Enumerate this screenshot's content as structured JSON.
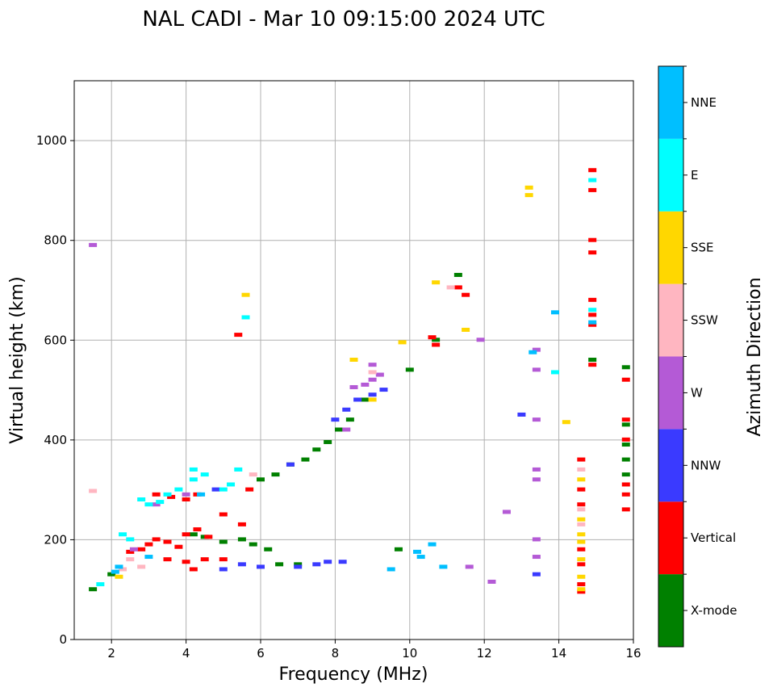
{
  "chart_data": {
    "type": "scatter",
    "title": "NAL CADI - Mar 10 09:15:00 2024 UTC",
    "xlabel": "Frequency (MHz)",
    "ylabel": "Virtual height (km)",
    "xlim": [
      1,
      16
    ],
    "ylim": [
      0,
      1120
    ],
    "xticks": [
      2,
      4,
      6,
      8,
      10,
      12,
      14,
      16
    ],
    "yticks": [
      0,
      200,
      400,
      600,
      800,
      1000
    ],
    "grid": true,
    "colorbar": {
      "label": "Azimuth Direction",
      "categories": [
        {
          "name": "X-mode",
          "color": "#008000"
        },
        {
          "name": "Vertical",
          "color": "#ff0000"
        },
        {
          "name": "NNW",
          "color": "#3a3aff"
        },
        {
          "name": "W",
          "color": "#b45ad6"
        },
        {
          "name": "SSW",
          "color": "#ffb6c1"
        },
        {
          "name": "SSE",
          "color": "#ffd700"
        },
        {
          "name": "E",
          "color": "#00ffff"
        },
        {
          "name": "NNE",
          "color": "#00bfff"
        }
      ]
    },
    "series": [
      {
        "name": "X-mode",
        "points": [
          [
            4.2,
            210
          ],
          [
            4.5,
            205
          ],
          [
            5.0,
            195
          ],
          [
            5.5,
            200
          ],
          [
            5.8,
            190
          ],
          [
            6.2,
            180
          ],
          [
            6.5,
            150
          ],
          [
            7.0,
            150
          ],
          [
            6.0,
            320
          ],
          [
            6.4,
            330
          ],
          [
            6.8,
            350
          ],
          [
            7.2,
            360
          ],
          [
            7.5,
            380
          ],
          [
            7.8,
            395
          ],
          [
            8.1,
            420
          ],
          [
            8.4,
            440
          ],
          [
            8.8,
            480
          ],
          [
            10.7,
            600
          ],
          [
            11.3,
            730
          ],
          [
            14.9,
            560
          ],
          [
            15.8,
            545
          ],
          [
            15.8,
            430
          ],
          [
            15.8,
            390
          ],
          [
            15.8,
            360
          ],
          [
            15.8,
            330
          ],
          [
            9.7,
            180
          ],
          [
            10.0,
            540
          ],
          [
            1.5,
            100
          ],
          [
            2.0,
            130
          ]
        ]
      },
      {
        "name": "Vertical",
        "points": [
          [
            2.5,
            175
          ],
          [
            2.8,
            180
          ],
          [
            3.0,
            190
          ],
          [
            3.2,
            200
          ],
          [
            3.5,
            195
          ],
          [
            3.8,
            185
          ],
          [
            4.0,
            210
          ],
          [
            4.3,
            220
          ],
          [
            4.6,
            205
          ],
          [
            3.5,
            160
          ],
          [
            4.0,
            155
          ],
          [
            4.5,
            160
          ],
          [
            5.0,
            160
          ],
          [
            3.2,
            290
          ],
          [
            3.6,
            285
          ],
          [
            4.0,
            280
          ],
          [
            4.3,
            290
          ],
          [
            5.0,
            250
          ],
          [
            5.5,
            230
          ],
          [
            4.2,
            140
          ],
          [
            14.9,
            940
          ],
          [
            14.9,
            900
          ],
          [
            14.9,
            800
          ],
          [
            14.9,
            775
          ],
          [
            14.9,
            680
          ],
          [
            14.9,
            650
          ],
          [
            14.9,
            630
          ],
          [
            14.9,
            550
          ],
          [
            14.6,
            360
          ],
          [
            14.6,
            300
          ],
          [
            14.6,
            270
          ],
          [
            14.6,
            180
          ],
          [
            14.6,
            150
          ],
          [
            14.6,
            110
          ],
          [
            14.6,
            95
          ],
          [
            15.8,
            520
          ],
          [
            15.8,
            440
          ],
          [
            15.8,
            400
          ],
          [
            15.8,
            310
          ],
          [
            15.8,
            290
          ],
          [
            15.8,
            260
          ],
          [
            10.6,
            605
          ],
          [
            10.7,
            590
          ],
          [
            11.3,
            705
          ],
          [
            11.5,
            690
          ],
          [
            5.4,
            610
          ],
          [
            5.7,
            300
          ]
        ]
      },
      {
        "name": "NNW",
        "points": [
          [
            7.5,
            150
          ],
          [
            7.8,
            155
          ],
          [
            8.2,
            155
          ],
          [
            5.0,
            140
          ],
          [
            5.5,
            150
          ],
          [
            6.0,
            145
          ],
          [
            7.0,
            145
          ],
          [
            8.0,
            440
          ],
          [
            8.3,
            460
          ],
          [
            8.6,
            480
          ],
          [
            9.0,
            490
          ],
          [
            9.3,
            500
          ],
          [
            13.0,
            450
          ],
          [
            13.4,
            130
          ],
          [
            6.8,
            350
          ],
          [
            4.8,
            300
          ]
        ]
      },
      {
        "name": "W",
        "points": [
          [
            8.5,
            505
          ],
          [
            8.8,
            510
          ],
          [
            9.0,
            520
          ],
          [
            9.2,
            530
          ],
          [
            9.0,
            550
          ],
          [
            11.9,
            600
          ],
          [
            13.4,
            580
          ],
          [
            13.4,
            540
          ],
          [
            13.4,
            440
          ],
          [
            13.4,
            340
          ],
          [
            13.4,
            320
          ],
          [
            13.4,
            200
          ],
          [
            13.4,
            165
          ],
          [
            12.6,
            255
          ],
          [
            12.2,
            115
          ],
          [
            11.6,
            145
          ],
          [
            8.3,
            420
          ],
          [
            1.5,
            790
          ],
          [
            4.0,
            290
          ],
          [
            3.2,
            270
          ],
          [
            2.6,
            180
          ]
        ]
      },
      {
        "name": "SSW",
        "points": [
          [
            2.5,
            160
          ],
          [
            2.3,
            140
          ],
          [
            2.8,
            145
          ],
          [
            14.6,
            340
          ],
          [
            14.6,
            260
          ],
          [
            14.6,
            230
          ],
          [
            9.0,
            535
          ],
          [
            11.1,
            705
          ],
          [
            5.8,
            330
          ],
          [
            1.5,
            297
          ]
        ]
      },
      {
        "name": "SSE",
        "points": [
          [
            13.2,
            905
          ],
          [
            13.2,
            890
          ],
          [
            10.7,
            715
          ],
          [
            11.5,
            620
          ],
          [
            14.6,
            320
          ],
          [
            14.6,
            240
          ],
          [
            14.6,
            210
          ],
          [
            14.6,
            195
          ],
          [
            14.6,
            125
          ],
          [
            14.6,
            100
          ],
          [
            14.6,
            160
          ],
          [
            9.0,
            480
          ],
          [
            8.5,
            560
          ],
          [
            9.8,
            595
          ],
          [
            5.6,
            690
          ],
          [
            14.2,
            435
          ],
          [
            2.2,
            125
          ]
        ]
      },
      {
        "name": "E",
        "points": [
          [
            2.8,
            280
          ],
          [
            3.0,
            270
          ],
          [
            3.3,
            275
          ],
          [
            3.5,
            290
          ],
          [
            3.8,
            300
          ],
          [
            4.2,
            320
          ],
          [
            4.5,
            330
          ],
          [
            5.0,
            300
          ],
          [
            5.2,
            310
          ],
          [
            2.3,
            210
          ],
          [
            2.5,
            200
          ],
          [
            1.7,
            110
          ],
          [
            14.9,
            920
          ],
          [
            14.9,
            660
          ],
          [
            13.9,
            535
          ],
          [
            5.6,
            645
          ],
          [
            5.4,
            340
          ],
          [
            4.2,
            340
          ]
        ]
      },
      {
        "name": "NNE",
        "points": [
          [
            10.2,
            175
          ],
          [
            10.3,
            165
          ],
          [
            10.6,
            190
          ],
          [
            10.9,
            145
          ],
          [
            13.9,
            655
          ],
          [
            9.5,
            140
          ],
          [
            2.2,
            145
          ],
          [
            2.1,
            135
          ],
          [
            3.0,
            165
          ],
          [
            4.4,
            290
          ],
          [
            14.9,
            635
          ],
          [
            13.3,
            575
          ]
        ]
      }
    ]
  }
}
